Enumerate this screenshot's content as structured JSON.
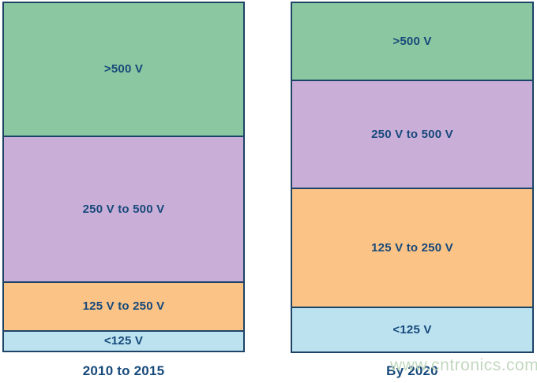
{
  "chart_data": {
    "type": "bar",
    "subtype": "stacked-100-percent",
    "title": "",
    "xlabel": "",
    "ylabel": "",
    "ylim": [
      0,
      100
    ],
    "grid": false,
    "legend": "none",
    "categories": [
      "2010 to 2015",
      "By 2020"
    ],
    "series": [
      {
        "key": "gt-500v",
        "name": ">500 V",
        "values": [
          38,
          22
        ],
        "color": "#8BC7A0"
      },
      {
        "key": "250v-500v",
        "name": "250 V to 500 V",
        "values": [
          42,
          31
        ],
        "color": "#C9AFD8"
      },
      {
        "key": "125v-250v",
        "name": "125 V to 250 V",
        "values": [
          14,
          34
        ],
        "color": "#FBC386"
      },
      {
        "key": "lt-125v",
        "name": "<125 V",
        "values": [
          6,
          13
        ],
        "color": "#BCE2F0"
      }
    ],
    "series_order": "top-to-bottom",
    "values_are_estimated_percent_of_bar_height": true
  },
  "watermark": {
    "text": "www.cntronics.com",
    "color": "#C2D8BF"
  },
  "colors": {
    "segment_green": "#8BC7A0",
    "segment_purple": "#C9AFD8",
    "segment_orange": "#FBC386",
    "segment_blue": "#BCE2F0",
    "outline_navy": "#1D4467",
    "label_navy": "#17497A",
    "background": "#FFFFFF"
  }
}
